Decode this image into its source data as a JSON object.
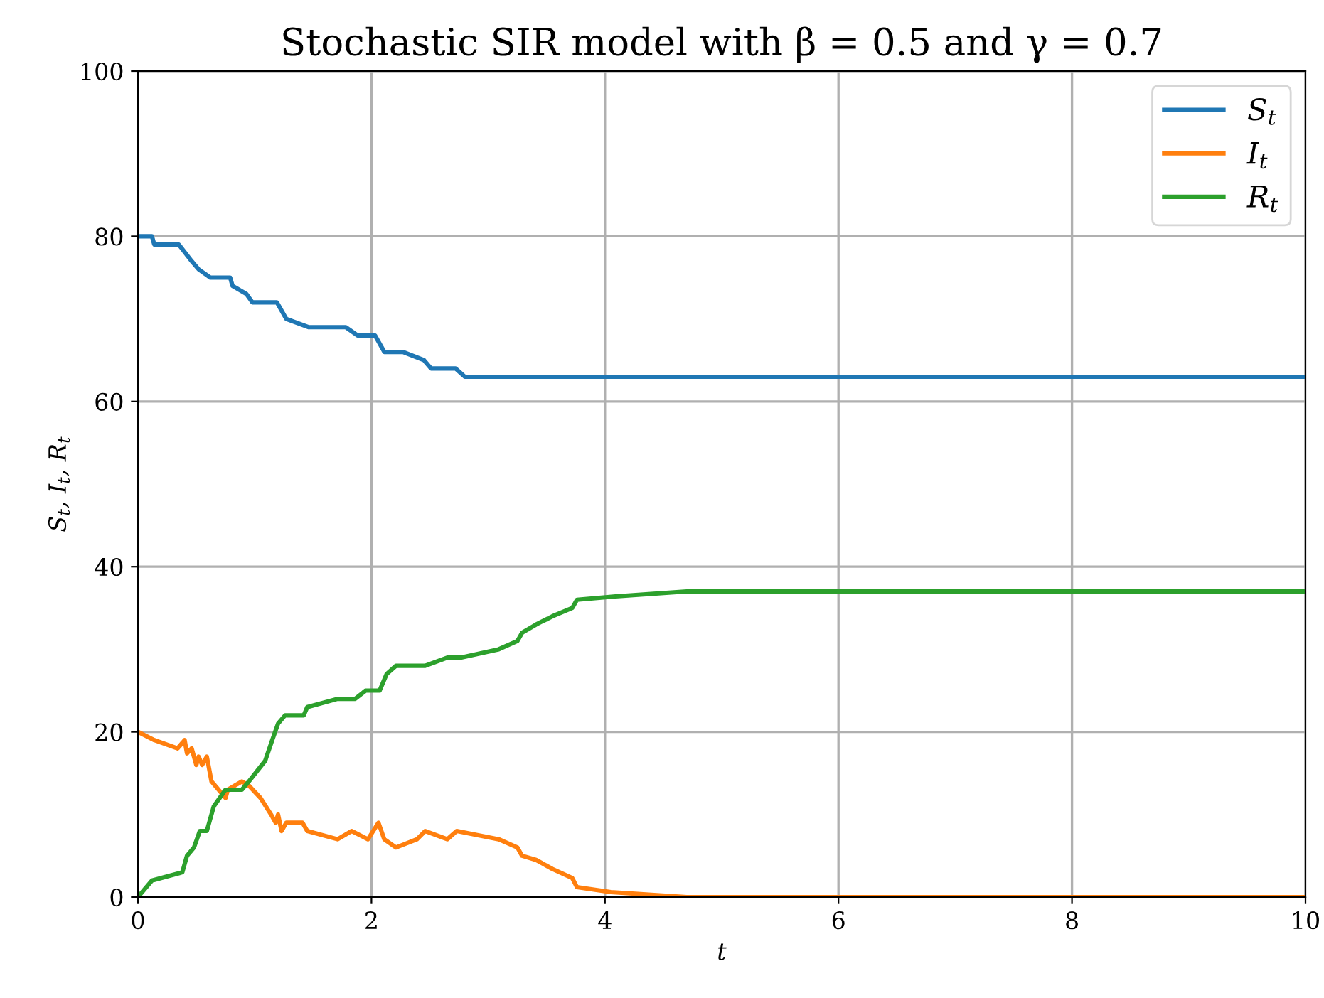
{
  "chart_data": {
    "type": "line",
    "title": "Stochastic SIR model with β = 0.5 and γ = 0.7",
    "xlabel": "t",
    "ylabel": "S$_{t}$, I$_{t}$, R$_{t}$",
    "xlim": [
      0,
      10
    ],
    "ylim": [
      0,
      100
    ],
    "xticks": [
      0,
      2,
      4,
      6,
      8,
      10
    ],
    "yticks": [
      0,
      20,
      40,
      60,
      80,
      100
    ],
    "grid": true,
    "legend": "top right",
    "line_style": "solid",
    "series": [
      {
        "name": "S$_{t}$",
        "color": "#1f77b4",
        "x": [
          0,
          0.12,
          0.14,
          0.35,
          0.46,
          0.52,
          0.62,
          0.79,
          0.81,
          0.93,
          0.98,
          1.19,
          1.27,
          1.46,
          1.78,
          1.88,
          2.03,
          2.11,
          2.27,
          2.45,
          2.51,
          2.72,
          2.8,
          10
        ],
        "values": [
          80,
          80,
          79,
          79,
          77,
          76,
          75,
          75,
          74,
          73,
          72,
          72,
          70,
          69,
          69,
          68,
          68,
          66,
          66,
          65,
          64,
          64,
          63,
          63
        ]
      },
      {
        "name": "I$_{t}$",
        "color": "#ff7f0e",
        "x": [
          0,
          0.14,
          0.34,
          0.4,
          0.42,
          0.46,
          0.5,
          0.52,
          0.55,
          0.59,
          0.63,
          0.75,
          0.77,
          0.89,
          0.95,
          1.05,
          1.14,
          1.18,
          1.2,
          1.23,
          1.27,
          1.41,
          1.45,
          1.71,
          1.83,
          1.97,
          2.06,
          2.11,
          2.21,
          2.39,
          2.46,
          2.65,
          2.73,
          3.09,
          3.25,
          3.29,
          3.41,
          3.55,
          3.72,
          3.76,
          4.05,
          4.7,
          10
        ],
        "values": [
          20,
          19,
          18,
          19,
          17.4,
          18,
          16,
          17,
          16,
          17,
          14,
          12,
          13,
          14,
          13.5,
          12,
          10,
          9,
          10,
          8,
          9,
          9,
          8,
          7,
          8,
          7,
          9,
          7,
          6,
          7,
          8,
          7,
          8,
          7,
          6,
          5,
          4.5,
          3.4,
          2.3,
          1.2,
          0.6,
          0,
          0
        ]
      },
      {
        "name": "R$_{t}$",
        "color": "#2ca02c",
        "x": [
          0,
          0.12,
          0.38,
          0.42,
          0.48,
          0.53,
          0.59,
          0.65,
          0.75,
          0.89,
          0.95,
          1.09,
          1.15,
          1.2,
          1.26,
          1.42,
          1.45,
          1.71,
          1.86,
          1.95,
          2.07,
          2.13,
          2.21,
          2.46,
          2.65,
          2.77,
          3.09,
          3.25,
          3.29,
          3.41,
          3.55,
          3.72,
          3.76,
          4.09,
          4.7,
          10
        ],
        "values": [
          0,
          2,
          3,
          5,
          6,
          8,
          8,
          11,
          13,
          13,
          14,
          16.5,
          19,
          21,
          22,
          22,
          23,
          24,
          24,
          25,
          25,
          27,
          28,
          28,
          29,
          29,
          30,
          31,
          32,
          33,
          34,
          35,
          36,
          36.4,
          37,
          37
        ]
      }
    ]
  }
}
